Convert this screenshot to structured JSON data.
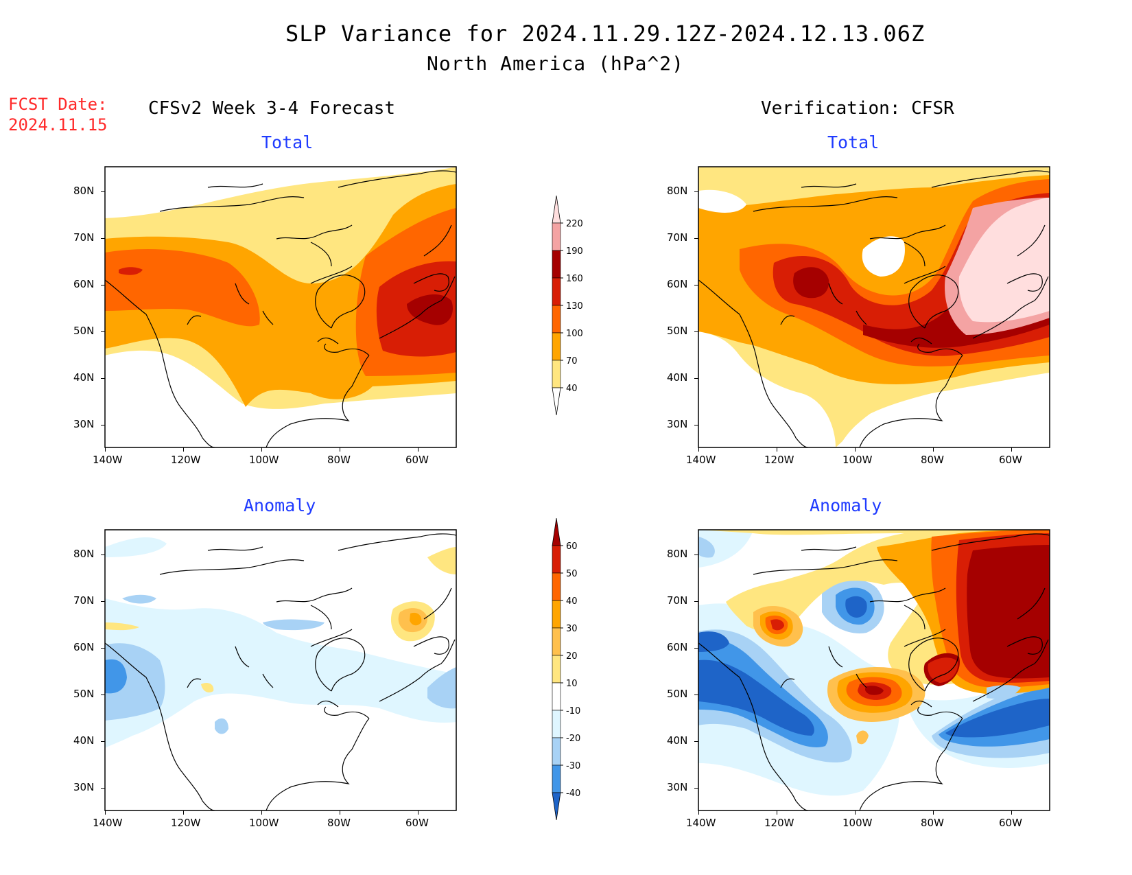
{
  "header": {
    "title": "SLP Variance for 2024.11.29.12Z-2024.12.13.06Z",
    "subtitle": "North America (hPa^2)",
    "fcst_label": "FCST Date:",
    "fcst_date": "2024.11.15"
  },
  "columns": {
    "left": "CFSv2 Week 3-4 Forecast",
    "right": "Verification: CFSR"
  },
  "panels": {
    "fc_total": {
      "title": "Total"
    },
    "ver_total": {
      "title": "Total"
    },
    "fc_anom": {
      "title": "Anomaly"
    },
    "ver_anom": {
      "title": "Anomaly"
    }
  },
  "axes": {
    "lon_labels": [
      "140W",
      "120W",
      "100W",
      "80W",
      "60W"
    ],
    "lat_labels": [
      "80N",
      "70N",
      "60N",
      "50N",
      "40N",
      "30N"
    ]
  },
  "colorbar_total": {
    "levels": [
      "220",
      "190",
      "160",
      "130",
      "100",
      "70",
      "40"
    ],
    "colors": [
      "#ffdede",
      "#f4a3a3",
      "#a50000",
      "#d81e05",
      "#ff6600",
      "#ffa500",
      "#ffe680"
    ]
  },
  "colorbar_anomaly": {
    "levels": [
      "60",
      "50",
      "40",
      "30",
      "20",
      "10",
      "-10",
      "-20",
      "-30",
      "-40"
    ],
    "colors": [
      "#a50000",
      "#d81e05",
      "#ff6600",
      "#ffa500",
      "#ffc04d",
      "#ffe680",
      "#ffffff",
      "#dff6ff",
      "#a8d2f5",
      "#4196e8",
      "#1e64c8"
    ]
  }
}
